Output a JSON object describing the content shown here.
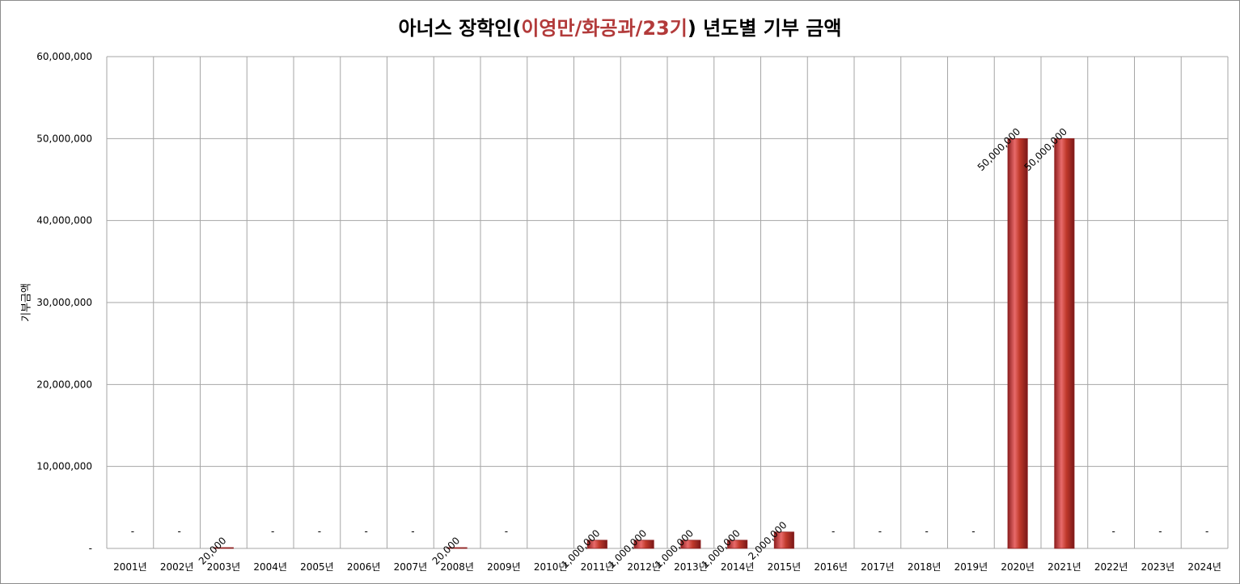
{
  "title": {
    "prefix": "아너스 장학인(",
    "highlight": "이영만/화공과/23기",
    "suffix": ") 년도별 기부 금액"
  },
  "colors": {
    "bar": "#c0392b",
    "bar_dark": "#8e1f1f",
    "bar_light": "#e86a6a",
    "title_accent": "#b23a3a",
    "grid": "#a6a6a6"
  },
  "chart_data": {
    "type": "bar",
    "title": "아너스 장학인(이영만/화공과/23기) 년도별 기부 금액",
    "xlabel": "",
    "ylabel": "기부금액",
    "ylim": [
      0,
      60000000
    ],
    "grid": true,
    "y_ticks": [
      {
        "value": 0,
        "label": "-"
      },
      {
        "value": 10000000,
        "label": "10,000,000"
      },
      {
        "value": 20000000,
        "label": "20,000,000"
      },
      {
        "value": 30000000,
        "label": "30,000,000"
      },
      {
        "value": 40000000,
        "label": "40,000,000"
      },
      {
        "value": 50000000,
        "label": "50,000,000"
      },
      {
        "value": 60000000,
        "label": "60,000,000"
      }
    ],
    "categories": [
      "2001년",
      "2002년",
      "2003년",
      "2004년",
      "2005년",
      "2006년",
      "2007년",
      "2008년",
      "2009년",
      "2010년",
      "2011년",
      "2012년",
      "2013년",
      "2014년",
      "2015년",
      "2016년",
      "2017년",
      "2018년",
      "2019년",
      "2020년",
      "2021년",
      "2022년",
      "2023년",
      "2024년"
    ],
    "values": [
      0,
      0,
      20000,
      0,
      0,
      0,
      0,
      20000,
      0,
      null,
      1000000,
      1000000,
      1000000,
      1000000,
      2000000,
      0,
      0,
      0,
      0,
      50000000,
      50000000,
      0,
      0,
      0
    ],
    "data_labels": [
      "-",
      "-",
      "20,000",
      "-",
      "-",
      "-",
      "-",
      "20,000",
      "-",
      "",
      "1,000,000",
      "1,000,000",
      "1,000,000",
      "1,000,000",
      "2,000,000",
      "-",
      "-",
      "-",
      "-",
      "50,000,000",
      "50,000,000",
      "-",
      "-",
      "-"
    ]
  }
}
